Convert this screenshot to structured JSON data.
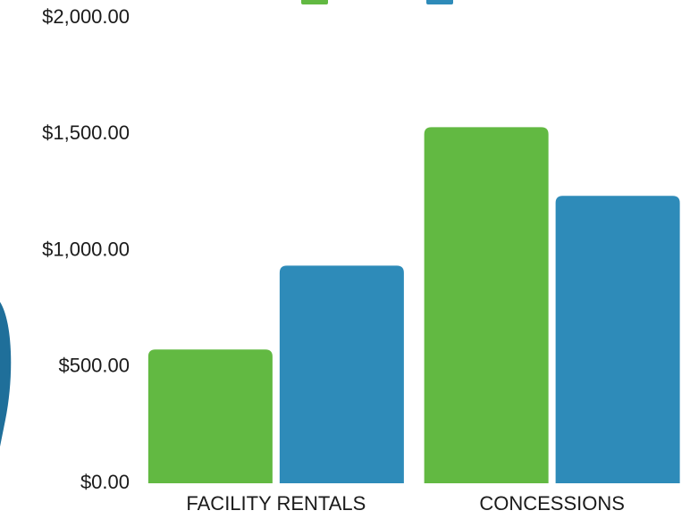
{
  "chart_data": {
    "type": "bar",
    "categories": [
      "FACILITY RENTALS",
      "CONCESSIONS"
    ],
    "series": [
      {
        "color": "#62b942",
        "values": [
          575,
          1530
        ]
      },
      {
        "color": "#2e8bb9",
        "values": [
          935,
          1235
        ]
      }
    ],
    "ylim": [
      0,
      2000
    ],
    "yticks": [
      {
        "value": 0,
        "label": "$0.00"
      },
      {
        "value": 500,
        "label": "$500.00"
      },
      {
        "value": 1000,
        "label": "$1,000.00"
      },
      {
        "value": 1500,
        "label": "$1,500.00"
      },
      {
        "value": 2000,
        "label": "$2,000.00"
      }
    ],
    "grid": false
  }
}
